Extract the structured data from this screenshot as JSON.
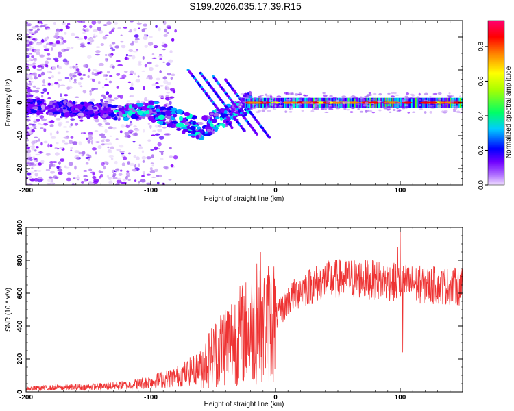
{
  "chart_data": [
    {
      "type": "heatmap",
      "title": "S199.2026.035.17.39.R15",
      "xlabel": "Height of straight line (km)",
      "ylabel": "Frequency (Hz)",
      "xlim": [
        -200,
        150
      ],
      "ylim": [
        -25,
        25
      ],
      "xticks": [
        "-200",
        "-100",
        "0",
        "100"
      ],
      "xtick_values": [
        -200,
        -100,
        0,
        100
      ],
      "yticks": [
        "-20",
        "-10",
        "0",
        "10",
        "20"
      ],
      "ytick_values": [
        -20,
        -10,
        0,
        10,
        20
      ],
      "colorbar": {
        "label": "Normalized spectral amplitude",
        "range": [
          0,
          0.95
        ],
        "ticks": [
          "0.0",
          "0.2",
          "0.4",
          "0.6",
          "0.8"
        ],
        "tick_values": [
          0.0,
          0.2,
          0.4,
          0.6,
          0.8
        ],
        "colors": [
          "#e0c8f8",
          "#8000ff",
          "#0000ff",
          "#00ffff",
          "#00ff00",
          "#ffff00",
          "#ff8000",
          "#ff0000",
          "#ff0080"
        ]
      },
      "ridge": {
        "x": [
          -200,
          -160,
          -120,
          -100,
          -80,
          -60,
          -40,
          -30,
          -20,
          -10,
          0,
          50,
          100,
          150
        ],
        "freq": [
          -1,
          -2,
          -3,
          -2,
          -5,
          -8,
          -4,
          -2,
          0,
          0,
          0,
          0,
          0,
          0
        ]
      }
    },
    {
      "type": "line",
      "title": "",
      "xlabel": "Height of straight line (km)",
      "ylabel": "SNR (10 * v/v)",
      "xlim": [
        -200,
        150
      ],
      "ylim": [
        0,
        1000
      ],
      "xticks": [
        "-200",
        "-100",
        "0",
        "100"
      ],
      "xtick_values": [
        -200,
        -100,
        0,
        100
      ],
      "yticks": [
        "0",
        "200",
        "400",
        "600",
        "800",
        "1000"
      ],
      "ytick_values": [
        0,
        200,
        400,
        600,
        800,
        1000
      ],
      "line_color": "#ee3333",
      "trend": {
        "x": [
          -200,
          -150,
          -120,
          -100,
          -80,
          -60,
          -40,
          -20,
          -10,
          0,
          10,
          20,
          40,
          60,
          80,
          100,
          120,
          150
        ],
        "y": [
          20,
          30,
          40,
          60,
          90,
          150,
          300,
          380,
          400,
          450,
          550,
          620,
          680,
          690,
          680,
          660,
          650,
          640
        ]
      },
      "spikes": [
        {
          "x": -12,
          "y": 850
        },
        {
          "x": -15,
          "y": 780
        },
        {
          "x": 100,
          "y": 1000
        },
        {
          "x": 102,
          "y": 240
        },
        {
          "x": 98,
          "y": 880
        }
      ]
    }
  ]
}
